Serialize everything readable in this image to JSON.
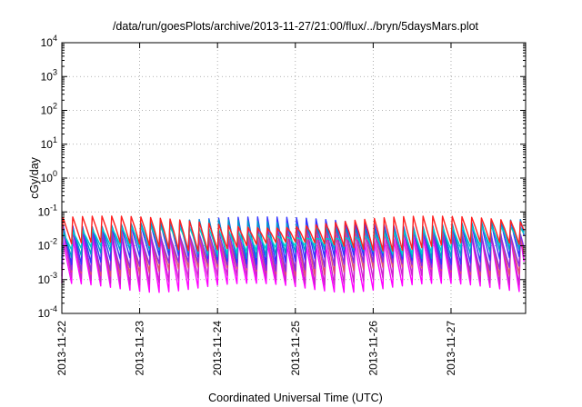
{
  "chart_data": {
    "type": "line",
    "title": "/data/run/goesPlots/archive/2013-11-27/21:00/flux/../bryn/5daysMars.plot",
    "xlabel": "Coordinated Universal Time (UTC)",
    "ylabel": "cGy/day",
    "yscale": "log",
    "ylim": [
      0.0001,
      10000
    ],
    "y_ticks": [
      {
        "mantissa": "10",
        "exp": "-4"
      },
      {
        "mantissa": "10",
        "exp": "-3"
      },
      {
        "mantissa": "10",
        "exp": "-2"
      },
      {
        "mantissa": "10",
        "exp": "-1"
      },
      {
        "mantissa": "10",
        "exp": "0"
      },
      {
        "mantissa": "10",
        "exp": "1"
      },
      {
        "mantissa": "10",
        "exp": "2"
      },
      {
        "mantissa": "10",
        "exp": "3"
      },
      {
        "mantissa": "10",
        "exp": "4"
      }
    ],
    "xlim": [
      "2013-11-22T00:00",
      "2013-11-27T23:00"
    ],
    "x_ticks": [
      "2013-11-22",
      "2013-11-23",
      "2013-11-24",
      "2013-11-25",
      "2013-11-26",
      "2013-11-27"
    ],
    "grid": true,
    "legend": "none",
    "sawtooth_period_hours": 3,
    "series": [
      {
        "color": "#ff00ff",
        "peak": 0.015,
        "trough": 0.0006
      },
      {
        "color": "#cc22cc",
        "peak": 0.02,
        "trough": 0.001
      },
      {
        "color": "#e05070",
        "peak": 0.03,
        "trough": 0.0018
      },
      {
        "color": "#8a2be2",
        "peak": 0.035,
        "trough": 0.0025
      },
      {
        "color": "#3333ff",
        "peak": 0.05,
        "trough": 0.004
      },
      {
        "color": "#0099cc",
        "peak": 0.04,
        "trough": 0.006
      },
      {
        "color": "#00cccc",
        "peak": 0.03,
        "trough": 0.008
      },
      {
        "color": "#ff2020",
        "peak": 0.06,
        "trough": 0.01
      }
    ]
  }
}
